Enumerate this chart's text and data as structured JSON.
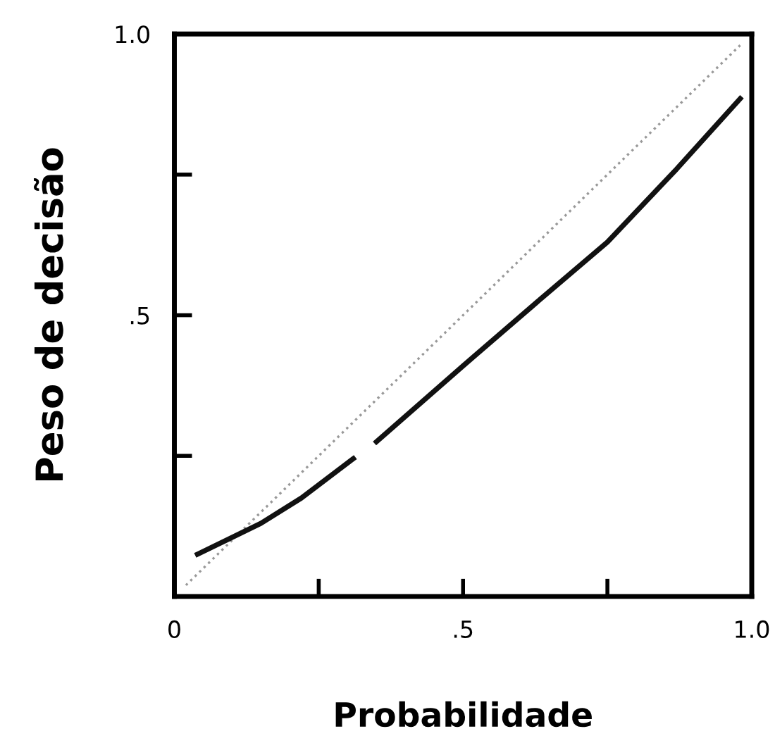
{
  "chart_data": {
    "type": "line",
    "xlabel": "Probabilidade",
    "ylabel": "Peso de decisão",
    "xlim": [
      0,
      1
    ],
    "ylim": [
      0,
      1
    ],
    "xticks": [
      {
        "value": 0,
        "label": "0"
      },
      {
        "value": 0.25,
        "label": null
      },
      {
        "value": 0.5,
        "label": ".5"
      },
      {
        "value": 0.75,
        "label": null
      },
      {
        "value": 1,
        "label": "1.0"
      }
    ],
    "yticks": [
      {
        "value": 0.25,
        "label": null
      },
      {
        "value": 0.5,
        "label": ".5"
      },
      {
        "value": 0.75,
        "label": null
      },
      {
        "value": 1,
        "label": "1.0"
      }
    ],
    "grid": false,
    "legend": false,
    "marker": "none",
    "series": [
      {
        "color": "#999999",
        "line_style": "dotted",
        "x": [
          0.02,
          0.98
        ],
        "values": [
          0.02,
          0.98
        ]
      },
      {
        "color": "#111111",
        "line_style": "solid",
        "x": [
          0.04,
          0.15,
          0.22,
          0.31,
          0.33,
          0.35,
          0.5,
          0.63,
          0.75,
          0.87,
          0.98
        ],
        "values": [
          0.075,
          0.13,
          0.175,
          0.245,
          null,
          0.275,
          0.41,
          0.525,
          0.63,
          0.76,
          0.885
        ]
      }
    ]
  }
}
